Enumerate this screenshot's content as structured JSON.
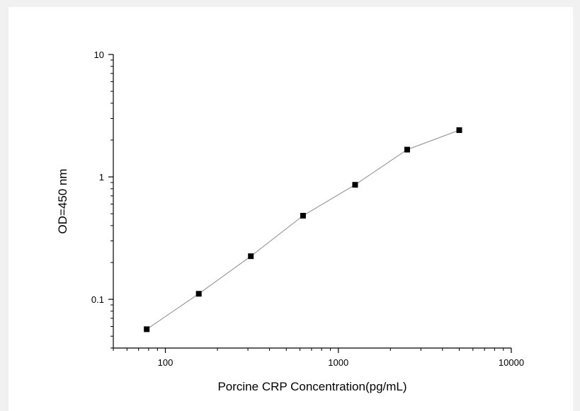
{
  "chart_data": {
    "type": "scatter",
    "title": "",
    "xlabel": "Porcine CRP Concentration(pg/mL)",
    "ylabel": "OD=450 nm",
    "x_scale": "log",
    "y_scale": "log",
    "xlim": [
      50,
      10000
    ],
    "ylim": [
      0.04,
      10
    ],
    "x_ticks": [
      100,
      1000,
      10000
    ],
    "x_tick_labels": [
      "100",
      "1000",
      "10000"
    ],
    "y_ticks": [
      0.1,
      1,
      10
    ],
    "y_tick_labels": [
      "0.1",
      "1",
      "10"
    ],
    "grid": false,
    "legend": "none",
    "series": [
      {
        "x": [
          78,
          156,
          312,
          625,
          1250,
          2500,
          5000
        ],
        "y": [
          0.057,
          0.111,
          0.225,
          0.482,
          0.862,
          1.67,
          2.41
        ],
        "marker": "square",
        "marker_color": "#000000",
        "line_color": "#8c8c8c"
      }
    ]
  }
}
